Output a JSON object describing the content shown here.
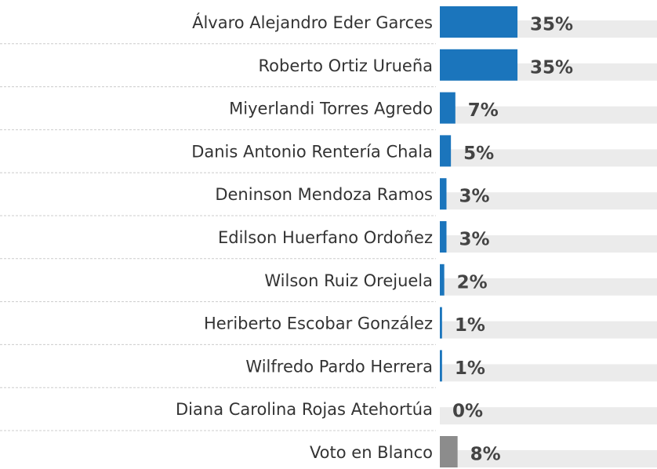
{
  "chart_data": {
    "type": "bar",
    "orientation": "horizontal",
    "categories": [
      "Álvaro Alejandro Eder Garces",
      "Roberto Ortiz Urueña",
      "Miyerlandi Torres Agredo",
      "Danis Antonio Rentería Chala",
      "Deninson Mendoza Ramos",
      "Edilson Huerfano Ordoñez",
      "Wilson Ruiz Orejuela",
      "Heriberto Escobar González",
      "Wilfredo Pardo Herrera",
      "Diana Carolina Rojas  Atehortúa",
      "Voto en Blanco"
    ],
    "values": [
      35,
      35,
      7,
      5,
      3,
      3,
      2,
      1,
      1,
      0,
      8
    ],
    "value_labels": [
      "35%",
      "35%",
      "7%",
      "5%",
      "3%",
      "3%",
      "2%",
      "1%",
      "1%",
      "0%",
      "8%"
    ],
    "colors": [
      "#1b75bc",
      "#1b75bc",
      "#1b75bc",
      "#1b75bc",
      "#1b75bc",
      "#1b75bc",
      "#1b75bc",
      "#1b75bc",
      "#1b75bc",
      "#1b75bc",
      "#8c8c8c"
    ]
  }
}
